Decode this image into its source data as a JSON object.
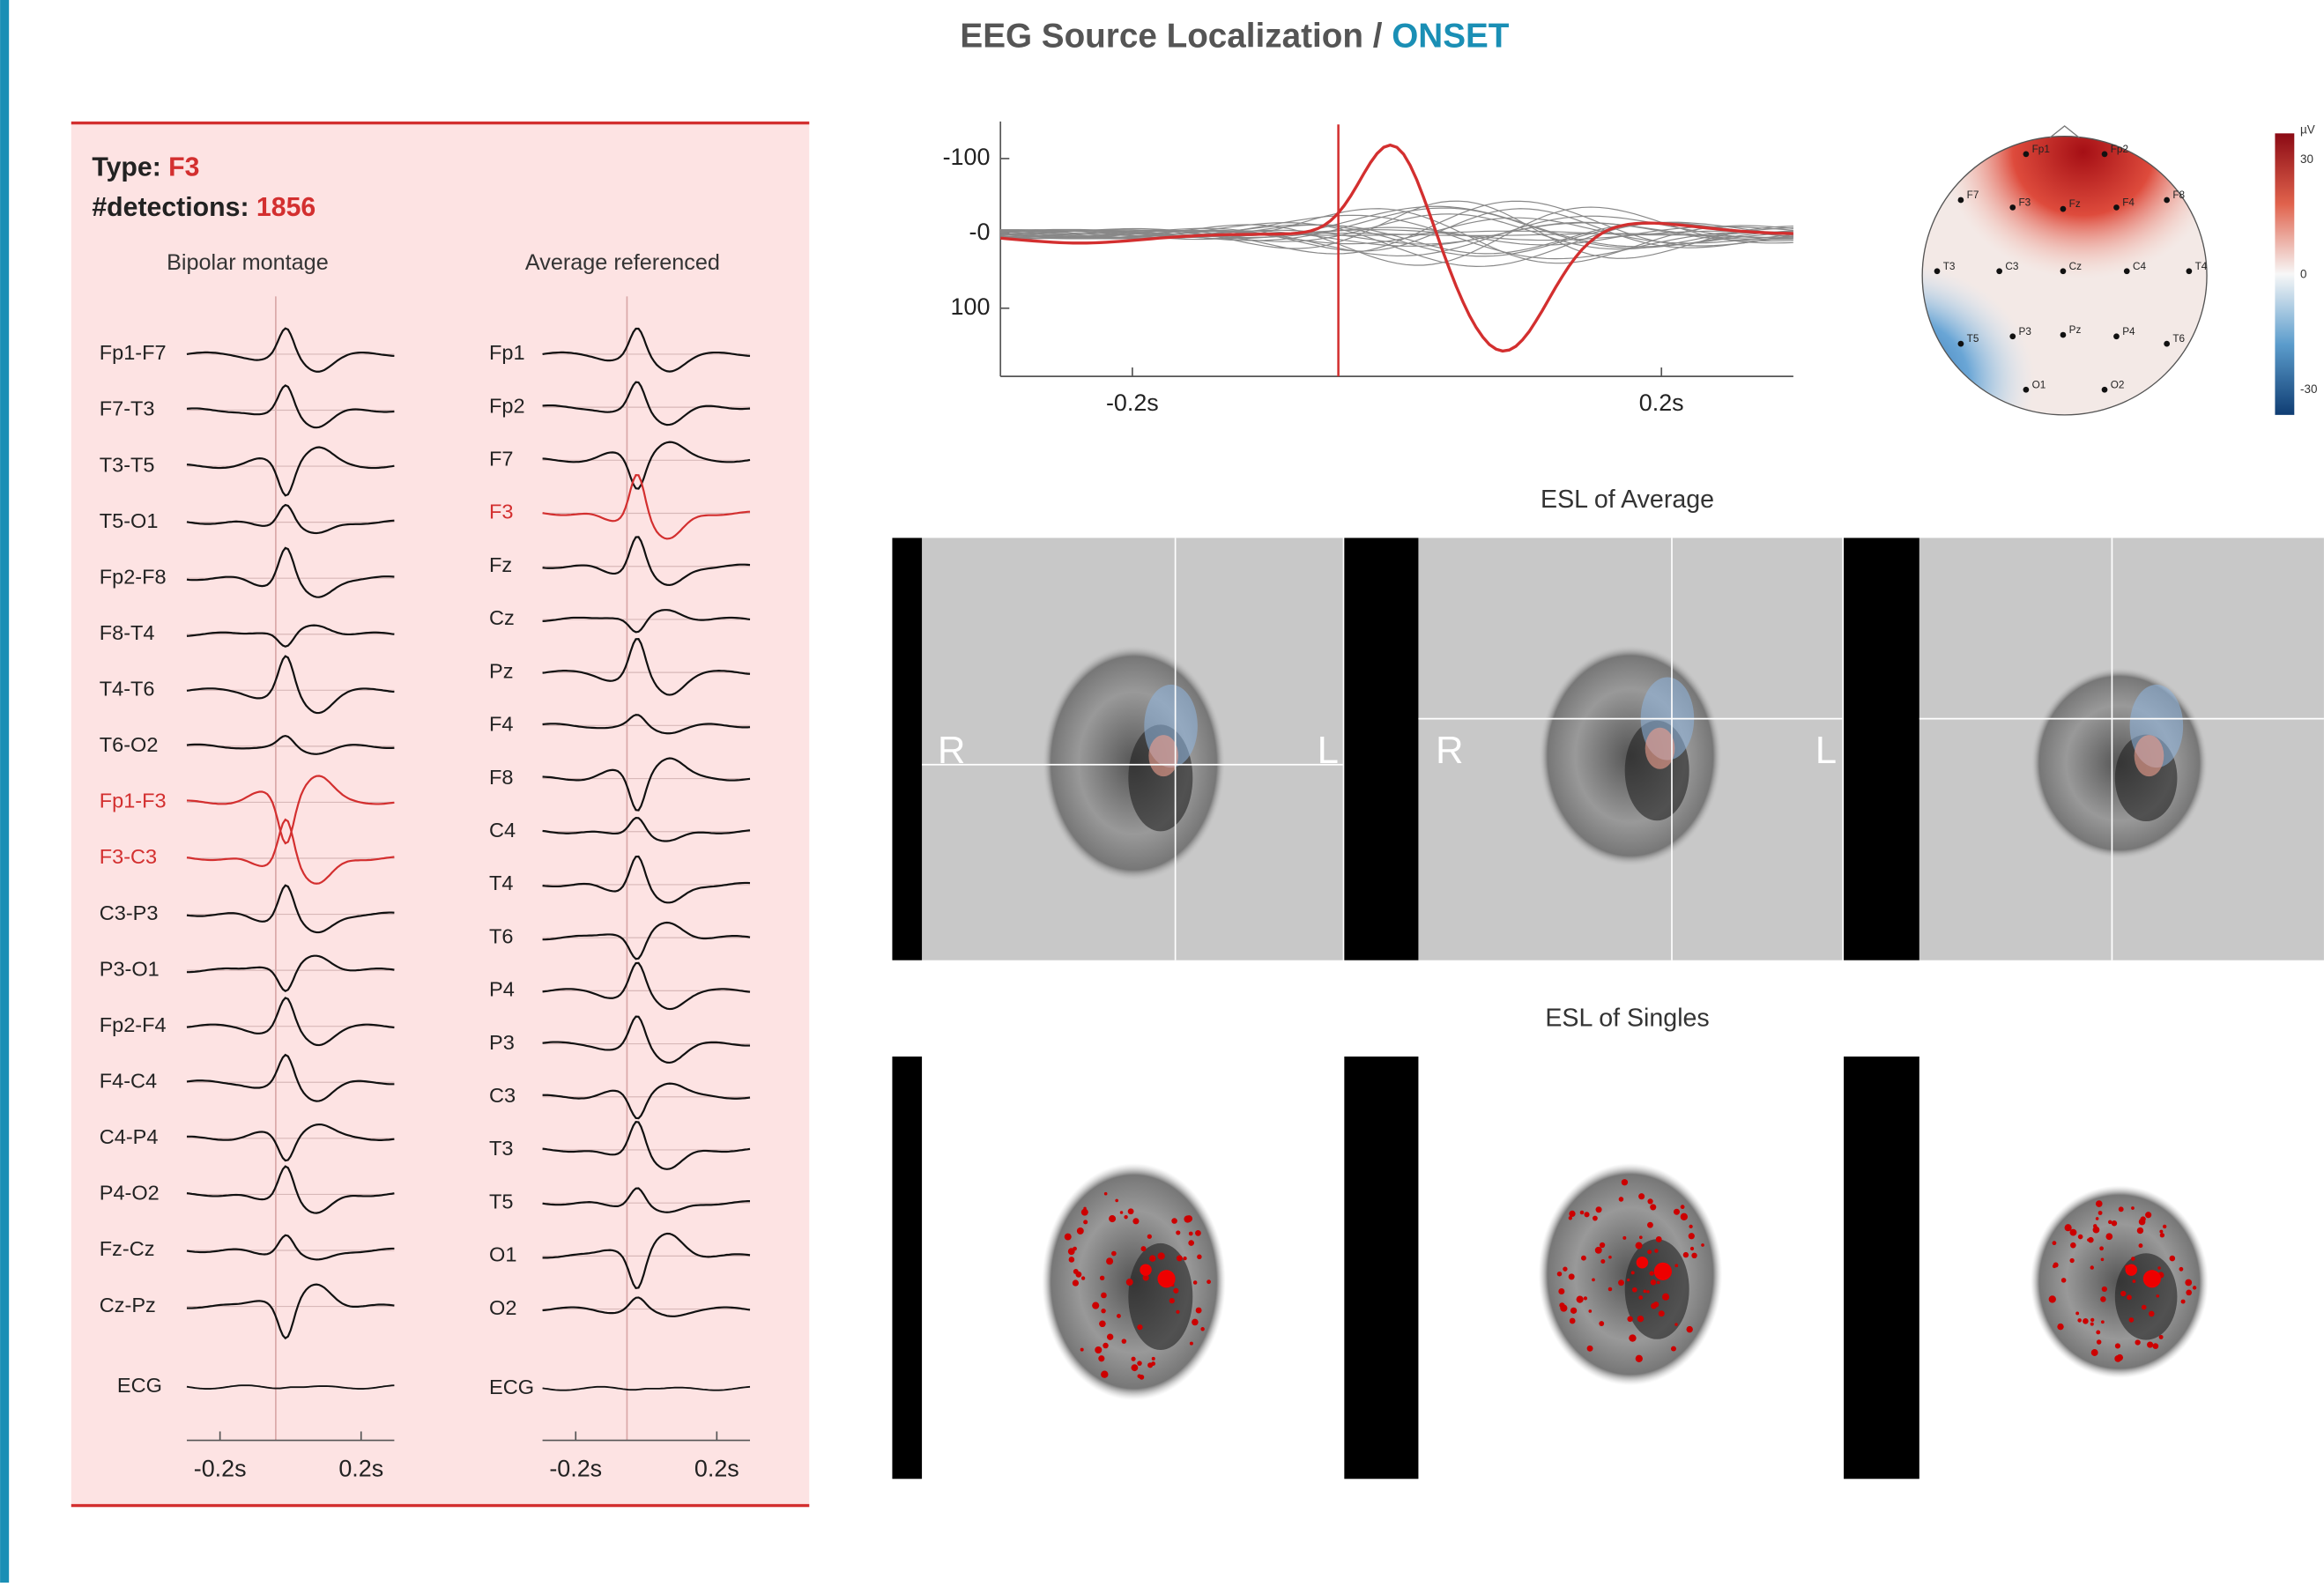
{
  "header": {
    "title": "EEG Source Localization",
    "separator": "/",
    "phase": "ONSET"
  },
  "left_panel": {
    "type_label": "Type:",
    "type_value": "F3",
    "detections_label": "#detections:",
    "detections_value": 1856,
    "bipolar": {
      "title": "Bipolar montage",
      "channels": [
        {
          "label": "Fp1-F7"
        },
        {
          "label": "F7-T3"
        },
        {
          "label": "T3-T5"
        },
        {
          "label": "T5-O1"
        },
        {
          "label": "Fp2-F8"
        },
        {
          "label": "F8-T4"
        },
        {
          "label": "T4-T6"
        },
        {
          "label": "T6-O2"
        },
        {
          "label": "Fp1-F3",
          "highlight": true
        },
        {
          "label": "F3-C3",
          "highlight": true
        },
        {
          "label": "C3-P3"
        },
        {
          "label": "P3-O1"
        },
        {
          "label": "Fp2-F4"
        },
        {
          "label": "F4-C4"
        },
        {
          "label": "C4-P4"
        },
        {
          "label": "P4-O2"
        },
        {
          "label": "Fz-Cz"
        },
        {
          "label": "Cz-Pz"
        }
      ],
      "ecg": "ECG",
      "xticks": [
        "-0.2s",
        "0.2s"
      ]
    },
    "average": {
      "title": "Average referenced",
      "channels": [
        {
          "label": "Fp1"
        },
        {
          "label": "Fp2"
        },
        {
          "label": "F7"
        },
        {
          "label": "F3",
          "highlight": true
        },
        {
          "label": "Fz"
        },
        {
          "label": "Cz"
        },
        {
          "label": "Pz"
        },
        {
          "label": "F4"
        },
        {
          "label": "F8"
        },
        {
          "label": "C4"
        },
        {
          "label": "T4"
        },
        {
          "label": "T6"
        },
        {
          "label": "P4"
        },
        {
          "label": "P3"
        },
        {
          "label": "C3"
        },
        {
          "label": "T3"
        },
        {
          "label": "T5"
        },
        {
          "label": "O1"
        },
        {
          "label": "O2"
        }
      ],
      "ecg": "ECG",
      "xticks": [
        "-0.2s",
        "0.2s"
      ]
    }
  },
  "average_waveform": {
    "yticks": [
      "-100",
      "-0",
      "100"
    ],
    "xticks": [
      "-0.2s",
      "0.2s"
    ]
  },
  "topomap": {
    "electrodes": [
      "Fp1",
      "Fp2",
      "F7",
      "F3",
      "Fz",
      "F4",
      "F8",
      "T3",
      "C3",
      "Cz",
      "C4",
      "T4",
      "T5",
      "P3",
      "Pz",
      "P4",
      "T6",
      "O1",
      "O2"
    ],
    "unit": "µV",
    "colorbar_ticks": [
      "30",
      "0",
      "-30"
    ]
  },
  "esl_average": {
    "title": "ESL of Average",
    "labels": [
      [
        "R",
        "L"
      ],
      [
        "R",
        "L"
      ]
    ]
  },
  "esl_singles": {
    "title": "ESL of Singles"
  }
}
